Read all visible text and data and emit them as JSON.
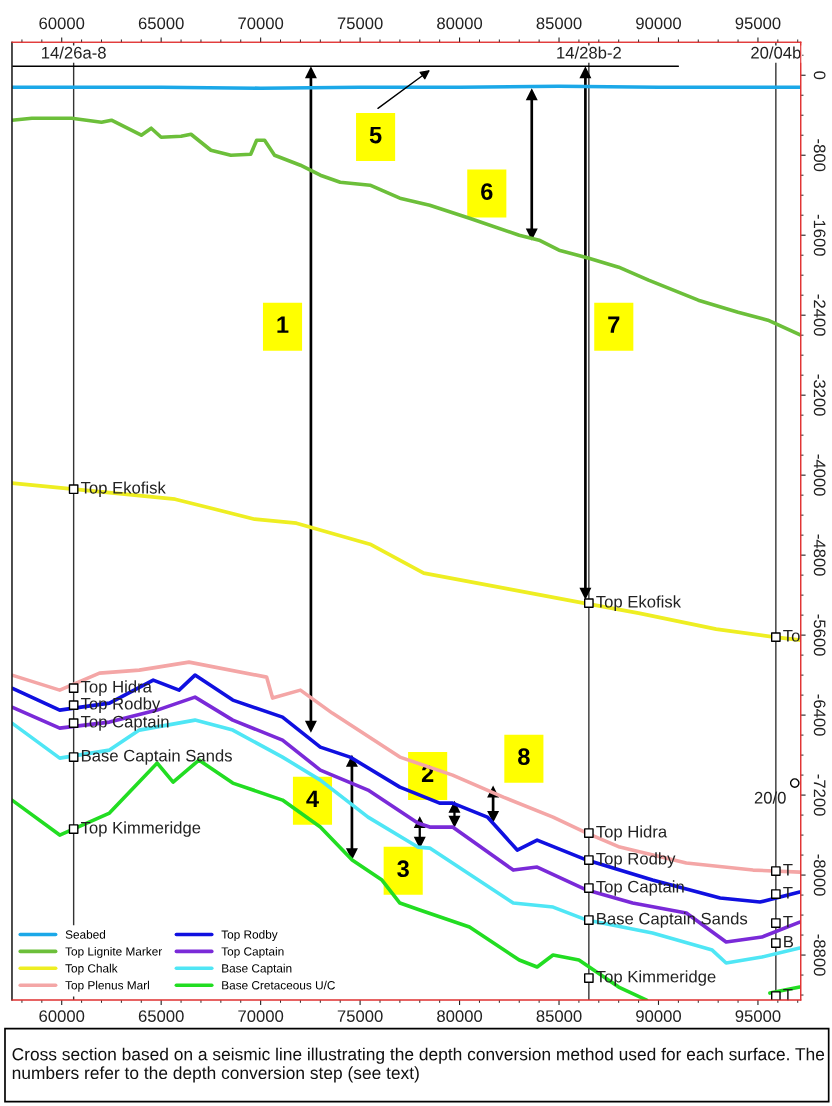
{
  "chart_data": {
    "type": "line",
    "xlim": [
      57500,
      97150
    ],
    "ylim": [
      -9250,
      330
    ],
    "xticks": [
      60000,
      65000,
      70000,
      75000,
      80000,
      85000,
      90000,
      95000
    ],
    "x2lim": [
      57500,
      97150
    ],
    "x2ticks": [
      60000,
      65000,
      70000,
      75000,
      80000,
      85000,
      90000,
      95000
    ],
    "yticks": [
      0,
      -800,
      -1600,
      -2400,
      -3200,
      -4000,
      -4800,
      -5600,
      -6400,
      -7200,
      -8000,
      -8800
    ],
    "legend": "bottom left",
    "series": [
      {
        "name": "Seabed",
        "color": "#1ba8e8",
        "x": [
          57500,
          65000,
          70000,
          75000,
          80000,
          85000,
          90000,
          97150
        ],
        "values": [
          -120,
          -120,
          -130,
          -120,
          -120,
          -110,
          -120,
          -120
        ]
      },
      {
        "name": "Top Lignite Marker",
        "color": "#6cbf3a",
        "x": [
          57500,
          58500,
          60000,
          60500,
          62000,
          62500,
          63000,
          64000,
          64500,
          65000,
          66000,
          66500,
          67000,
          67500,
          68500,
          69500,
          69800,
          70200,
          70700,
          72000,
          73000,
          74000,
          75500,
          77000,
          78500,
          80500,
          83000,
          84000,
          85000,
          86500,
          88000,
          89500,
          92000,
          94000,
          95500,
          97150
        ],
        "values": [
          -450,
          -430,
          -430,
          -430,
          -470,
          -450,
          -500,
          -600,
          -530,
          -620,
          -610,
          -590,
          -670,
          -750,
          -800,
          -790,
          -650,
          -650,
          -800,
          -900,
          -1000,
          -1070,
          -1100,
          -1230,
          -1300,
          -1430,
          -1600,
          -1650,
          -1750,
          -1830,
          -1920,
          -2050,
          -2250,
          -2370,
          -2450,
          -2600
        ]
      },
      {
        "name": "Top Chalk",
        "color": "#eeee22",
        "x": [
          57500,
          60600,
          65700,
          69700,
          71800,
          75500,
          78200,
          82500,
          86250,
          89000,
          92900,
          95850,
          97150
        ],
        "values": [
          -4080,
          -4140,
          -4240,
          -4440,
          -4480,
          -4690,
          -4980,
          -5140,
          -5280,
          -5380,
          -5540,
          -5620,
          -5650
        ]
      },
      {
        "name": "Top Plenus Marl",
        "color": "#f4a6a6",
        "x": [
          57500,
          59900,
          61900,
          63900,
          66400,
          70300,
          70600,
          72000,
          73600,
          77000,
          79650,
          82200,
          84700,
          86400,
          88050,
          91400,
          94750,
          97100
        ],
        "values": [
          -6000,
          -6150,
          -5980,
          -5950,
          -5870,
          -6020,
          -6230,
          -6150,
          -6380,
          -6820,
          -7000,
          -7220,
          -7420,
          -7580,
          -7720,
          -7880,
          -7950,
          -7970
        ]
      },
      {
        "name": "Top Rodby",
        "color": "#1010e0",
        "x": [
          57500,
          59900,
          62400,
          64600,
          65900,
          66700,
          68600,
          71100,
          73000,
          74500,
          77000,
          79000,
          79650,
          81400,
          82900,
          83900,
          86400,
          89700,
          93100,
          95100,
          97100
        ],
        "values": [
          -6130,
          -6350,
          -6280,
          -6050,
          -6150,
          -6000,
          -6250,
          -6420,
          -6720,
          -6820,
          -7120,
          -7280,
          -7280,
          -7420,
          -7750,
          -7650,
          -7850,
          -8050,
          -8230,
          -8270,
          -8170
        ]
      },
      {
        "name": "Top Captain",
        "color": "#7a2ad8",
        "x": [
          57500,
          59900,
          62400,
          64800,
          66700,
          68600,
          71100,
          73000,
          75400,
          77900,
          78500,
          79650,
          82700,
          83900,
          86400,
          88700,
          91400,
          93400,
          95200,
          97100
        ],
        "values": [
          -6320,
          -6530,
          -6470,
          -6350,
          -6220,
          -6450,
          -6650,
          -6950,
          -7150,
          -7480,
          -7520,
          -7520,
          -7950,
          -7920,
          -8150,
          -8280,
          -8380,
          -8670,
          -8620,
          -8470
        ]
      },
      {
        "name": "Base Captain",
        "color": "#4fe6f5",
        "x": [
          57500,
          59900,
          62400,
          63900,
          66700,
          68600,
          71100,
          73000,
          75400,
          77900,
          78500,
          82700,
          84700,
          86400,
          89700,
          92700,
          93400,
          95200,
          97100
        ],
        "values": [
          -6480,
          -6830,
          -6750,
          -6550,
          -6450,
          -6550,
          -6820,
          -7050,
          -7420,
          -7720,
          -7730,
          -8280,
          -8320,
          -8450,
          -8580,
          -8750,
          -8880,
          -8820,
          -8730
        ]
      },
      {
        "name": "Base Cretaceous U/C",
        "color": "#22dd22",
        "x": [
          57500,
          59900,
          62400,
          64800,
          65600,
          66900,
          68600,
          71100,
          73000,
          74600,
          76100,
          77000,
          78000,
          80500,
          83000,
          83900,
          84700,
          86000,
          88000,
          89400,
          92000,
          95600,
          97100
        ],
        "values": [
          -7250,
          -7600,
          -7380,
          -6880,
          -7070,
          -6850,
          -7080,
          -7250,
          -7520,
          -7850,
          -8050,
          -8280,
          -8350,
          -8520,
          -8850,
          -8920,
          -8800,
          -8850,
          -9120,
          -9250,
          null,
          -9180,
          -9120
        ]
      },
      {
        "color": "#000000",
        "marker": "none",
        "x": [
          57500,
          91000
        ],
        "values": [
          90,
          90
        ]
      },
      {
        "type": "scatter",
        "color": "#000000",
        "marker": "square",
        "x": [
          60600,
          60600,
          60600,
          60600,
          60600,
          60600,
          86500,
          86500,
          86500,
          86500,
          86500,
          86500,
          95900,
          95900,
          95900,
          95900,
          95900,
          95900
        ],
        "values": [
          -4140,
          -6130,
          -6300,
          -6480,
          -6820,
          -7540,
          -5280,
          -7580,
          -7850,
          -8130,
          -8450,
          -9030,
          -5620,
          -7960,
          -8190,
          -8480,
          -8680,
          -9210
        ],
        "value_labels": [
          "Top Ekofisk",
          "Top Hidra",
          "Top Rodby",
          "Top Captain",
          "Base Captain Sands",
          "Top Kimmeridge",
          "Top Ekofisk",
          "Top Hidra",
          "Top Rodby",
          "Top Captain",
          "Base Captain Sands",
          "Top Kimmeridge",
          "To",
          "T",
          "T",
          "T",
          "B",
          "T"
        ]
      },
      {
        "type": "scatter",
        "color": "#000000",
        "marker": "circle",
        "x": [
          96850
        ],
        "values": [
          -7080
        ],
        "value_labels": [
          "20/0"
        ]
      }
    ],
    "ref_lines": [
      {
        "axis": "x",
        "value": 60600,
        "label": "14/26a-8",
        "color": "#333333"
      },
      {
        "axis": "x",
        "value": 86500,
        "label": "14/28b-2",
        "color": "#333333"
      },
      {
        "axis": "x",
        "value": 95900,
        "label": "20/04b",
        "color": "#333333"
      }
    ],
    "annotations": [
      "Cross section based on a seismic line illustrating the depth conversion method used for each surface. The numbers refer to the depth conversion step (see text)",
      "1",
      "5",
      "6",
      "7",
      "4",
      "2",
      "8",
      "3"
    ]
  }
}
